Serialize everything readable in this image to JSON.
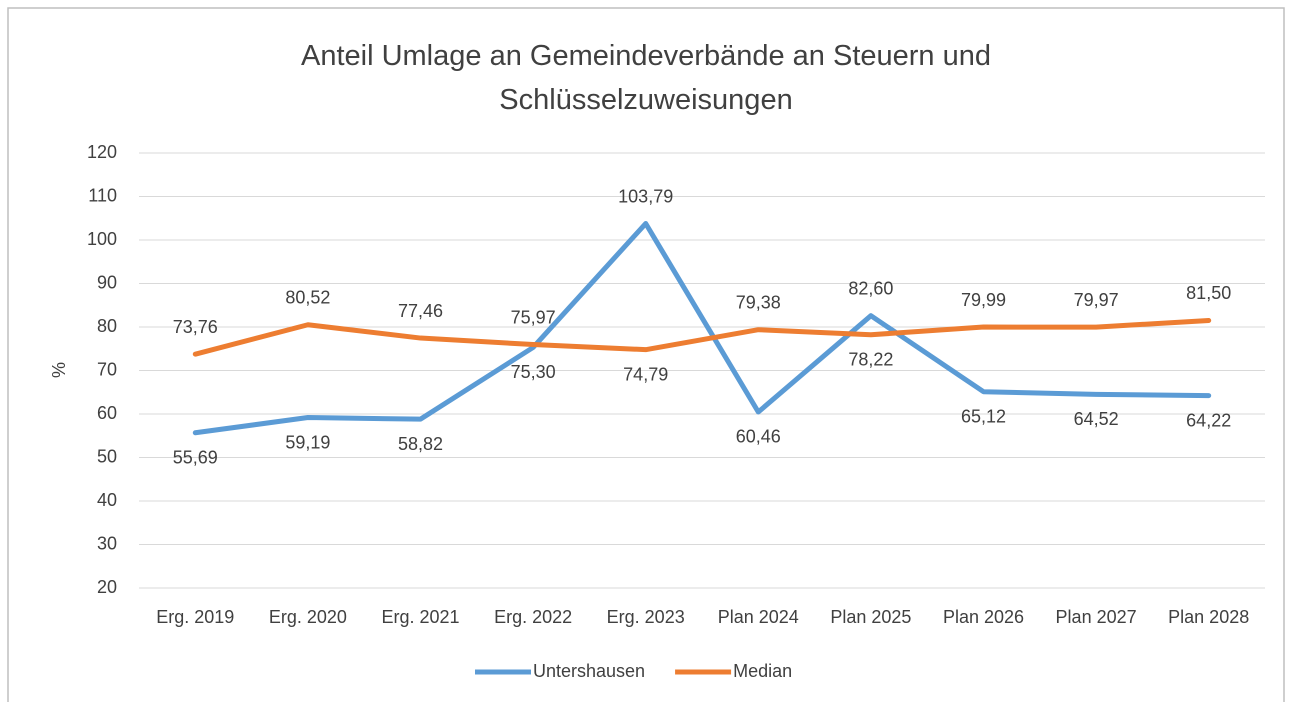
{
  "chart_data": {
    "type": "line",
    "title": "Anteil Umlage an Gemeindeverbände an Steuern und Schlüsselzuweisungen",
    "y_label": "%",
    "categories": [
      "Erg. 2019",
      "Erg. 2020",
      "Erg. 2021",
      "Erg. 2022",
      "Erg. 2023",
      "Plan 2024",
      "Plan 2025",
      "Plan 2026",
      "Plan 2027",
      "Plan 2028"
    ],
    "series": [
      {
        "name": "Untershausen",
        "color": "#5b9bd5",
        "values": [
          55.69,
          59.19,
          58.82,
          75.3,
          103.79,
          60.46,
          82.6,
          65.12,
          64.52,
          64.22
        ],
        "value_labels": [
          "55,69",
          "59,19",
          "58,82",
          "75,30",
          "103,79",
          "60,46",
          "82,60",
          "65,12",
          "64,52",
          "64,22"
        ]
      },
      {
        "name": "Median",
        "color": "#ed7d31",
        "values": [
          73.76,
          80.52,
          77.46,
          75.97,
          74.79,
          79.38,
          78.22,
          79.99,
          79.97,
          81.5
        ],
        "value_labels": [
          "73,76",
          "80,52",
          "77,46",
          "75,97",
          "74,79",
          "79,38",
          "78,22",
          "79,99",
          "79,97",
          "81,50"
        ]
      }
    ],
    "ylim": [
      20,
      120
    ],
    "yticks": [
      20,
      30,
      40,
      50,
      60,
      70,
      80,
      90,
      100,
      110,
      120
    ],
    "grid": true,
    "legend": "bottom"
  }
}
